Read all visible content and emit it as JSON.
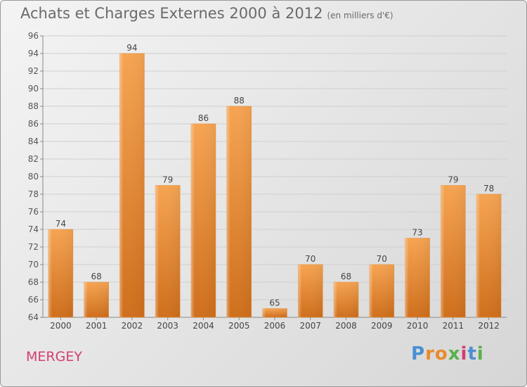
{
  "title": "Achats et Charges Externes 2000 à 2012",
  "subtitle": "(en milliers d'€)",
  "place_name": "MERGEY",
  "logo_text": "Proxiti",
  "colors": {
    "bar_top": "#f6a452",
    "bar_bottom": "#cf6f1c",
    "title": "#6a6a6a",
    "place": "#d23f72",
    "grid": "#cfcfcf"
  },
  "chart_data": {
    "type": "bar",
    "categories": [
      "2000",
      "2001",
      "2002",
      "2003",
      "2004",
      "2005",
      "2006",
      "2007",
      "2008",
      "2009",
      "2010",
      "2011",
      "2012"
    ],
    "values": [
      74,
      68,
      94,
      79,
      86,
      88,
      65,
      70,
      68,
      70,
      73,
      79,
      78
    ],
    "ylim": [
      64,
      96
    ],
    "yticks": [
      64,
      66,
      68,
      70,
      72,
      74,
      76,
      78,
      80,
      82,
      84,
      86,
      88,
      90,
      92,
      94,
      96
    ],
    "grid": true,
    "data_labels": true
  }
}
